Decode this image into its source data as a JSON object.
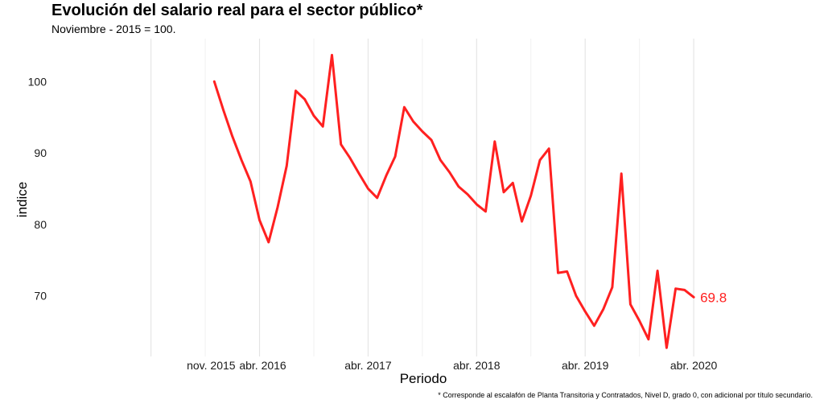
{
  "chart_data": {
    "type": "line",
    "title": "Evolución del salario real para el sector público*",
    "subtitle": "Noviembre - 2015 = 100.",
    "xlabel": "Periodo",
    "ylabel": "indice",
    "caption": "* Corresponde al escalafón de Planta Transitoria y Contratados, Nivel D, grado 0, con adicional por título secundario.",
    "color": "#ff2020",
    "grid": "vertical major and minor, no horizontal",
    "x_ticks": [
      "nov. 2015",
      "abr. 2016",
      "abr. 2017",
      "abr. 2018",
      "abr. 2019",
      "abr. 2020"
    ],
    "y_ticks": [
      "70",
      "80",
      "90",
      "100"
    ],
    "ylim": [
      61.5,
      106
    ],
    "xlim": [
      "2014-05",
      "2020-12"
    ],
    "end_label": "69.8",
    "x": [
      "2015-11",
      "2015-12",
      "2016-01",
      "2016-02",
      "2016-03",
      "2016-04",
      "2016-05",
      "2016-06",
      "2016-07",
      "2016-08",
      "2016-09",
      "2016-10",
      "2016-11",
      "2016-12",
      "2017-01",
      "2017-02",
      "2017-03",
      "2017-04",
      "2017-05",
      "2017-06",
      "2017-07",
      "2017-08",
      "2017-09",
      "2017-10",
      "2017-11",
      "2017-12",
      "2018-01",
      "2018-02",
      "2018-03",
      "2018-04",
      "2018-05",
      "2018-06",
      "2018-07",
      "2018-08",
      "2018-09",
      "2018-10",
      "2018-11",
      "2018-12",
      "2019-01",
      "2019-02",
      "2019-03",
      "2019-04",
      "2019-05",
      "2019-06",
      "2019-07",
      "2019-08",
      "2019-09",
      "2019-10",
      "2019-11",
      "2019-12",
      "2020-01",
      "2020-02",
      "2020-03",
      "2020-04"
    ],
    "values": [
      100.0,
      96.0,
      92.3,
      89.0,
      86.0,
      80.6,
      77.5,
      82.4,
      88.2,
      98.7,
      97.5,
      95.2,
      93.7,
      103.7,
      91.2,
      89.3,
      87.1,
      85.0,
      83.7,
      86.8,
      89.5,
      96.4,
      94.4,
      93.0,
      91.8,
      89.0,
      87.3,
      85.3,
      84.2,
      82.8,
      81.8,
      91.6,
      84.5,
      85.8,
      80.4,
      84.0,
      89.0,
      90.6,
      73.2,
      73.4,
      70.0,
      67.8,
      65.8,
      68.1,
      71.2,
      87.1,
      68.8,
      66.5,
      63.9,
      73.5,
      62.7,
      71.0,
      70.8,
      69.8
    ]
  }
}
